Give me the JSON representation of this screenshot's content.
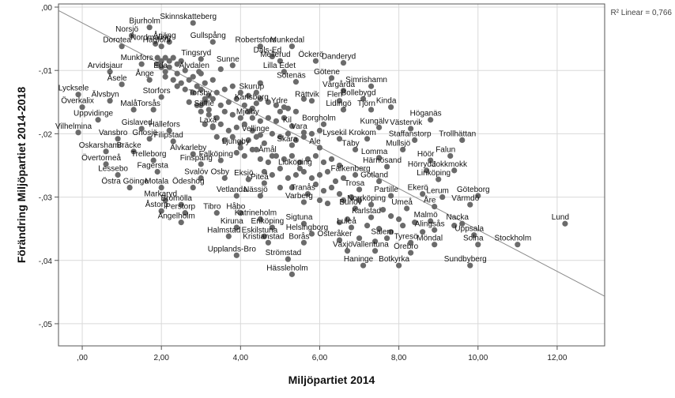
{
  "chart_data": {
    "type": "scatter",
    "title": "",
    "xlabel": "Miljöpartiet 2014",
    "ylabel": "Förändring Miljöpartiet 2014-2018",
    "xlim": [
      -0.6,
      13.2
    ],
    "ylim": [
      -0.0535,
      0.0005
    ],
    "x_ticks": [
      0,
      2,
      4,
      6,
      8,
      10,
      12
    ],
    "x_tick_labels": [
      ",00",
      "2,00",
      "4,00",
      "6,00",
      "8,00",
      "10,00",
      "12,00"
    ],
    "y_ticks": [
      0,
      -0.01,
      -0.02,
      -0.03,
      -0.04,
      -0.05
    ],
    "y_tick_labels": [
      ",00",
      "-,01",
      "-,02",
      "-,03",
      "-,04",
      "-,05"
    ],
    "grid": true,
    "fit_line": {
      "label": "R² Linear = 0,766",
      "intercept": -0.0025,
      "slope": -0.00327
    },
    "marker_color": "#6b6b6b",
    "line_color": "#8a8a8a",
    "labeled_points": [
      {
        "name": "Skinnskatteberg",
        "x": 2.8,
        "y": -0.0025
      },
      {
        "name": "Bjurholm",
        "x": 1.7,
        "y": -0.0032
      },
      {
        "name": "Årjäng",
        "x": 2.2,
        "y": -0.0055
      },
      {
        "name": "Gullspång",
        "x": 3.3,
        "y": -0.0055
      },
      {
        "name": "Norsjö",
        "x": 1.25,
        "y": -0.0045
      },
      {
        "name": "Nordmaling",
        "x": 1.85,
        "y": -0.0058
      },
      {
        "name": "Robertsfors",
        "x": 4.5,
        "y": -0.0062
      },
      {
        "name": "Munkedal",
        "x": 5.3,
        "y": -0.0062
      },
      {
        "name": "Dorotea",
        "x": 1.0,
        "y": -0.0062
      },
      {
        "name": "Hagfors",
        "x": 2.0,
        "y": -0.0062
      },
      {
        "name": "Dals-Ed",
        "x": 4.8,
        "y": -0.0078
      },
      {
        "name": "Tingsryd",
        "x": 3.0,
        "y": -0.0082
      },
      {
        "name": "Mellerud",
        "x": 5.0,
        "y": -0.0085
      },
      {
        "name": "Öckerö",
        "x": 5.9,
        "y": -0.0085
      },
      {
        "name": "Danderyd",
        "x": 6.6,
        "y": -0.0088
      },
      {
        "name": "Munkfors",
        "x": 1.5,
        "y": -0.009
      },
      {
        "name": "Sunne",
        "x": 3.8,
        "y": -0.0092
      },
      {
        "name": "Arvidsjaur",
        "x": 0.7,
        "y": -0.0102
      },
      {
        "name": "Eda",
        "x": 2.1,
        "y": -0.0102
      },
      {
        "name": "Älvdalen",
        "x": 2.95,
        "y": -0.0102
      },
      {
        "name": "Lilla Edet",
        "x": 5.1,
        "y": -0.0102
      },
      {
        "name": "Götene",
        "x": 6.3,
        "y": -0.0112
      },
      {
        "name": "Ånge",
        "x": 1.7,
        "y": -0.0115
      },
      {
        "name": "Sotenäs",
        "x": 5.4,
        "y": -0.0118
      },
      {
        "name": "Åsele",
        "x": 1.0,
        "y": -0.0122
      },
      {
        "name": "Simrishamn",
        "x": 7.3,
        "y": -0.0125
      },
      {
        "name": "Vårgårda",
        "x": 6.6,
        "y": -0.0132
      },
      {
        "name": "Skurup",
        "x": 4.4,
        "y": -0.0135
      },
      {
        "name": "Lycksele",
        "x": -0.1,
        "y": -0.0138
      },
      {
        "name": "Storfors",
        "x": 2.0,
        "y": -0.0142
      },
      {
        "name": "Torsby",
        "x": 3.1,
        "y": -0.0145
      },
      {
        "name": "Bollebygd",
        "x": 7.1,
        "y": -0.0145
      },
      {
        "name": "Älvsbyn",
        "x": 0.7,
        "y": -0.0148
      },
      {
        "name": "Karlsborg",
        "x": 4.4,
        "y": -0.0152
      },
      {
        "name": "Rättvik",
        "x": 5.8,
        "y": -0.0148
      },
      {
        "name": "Flen",
        "x": 6.5,
        "y": -0.0148
      },
      {
        "name": "Överkalix",
        "x": 0.0,
        "y": -0.0158
      },
      {
        "name": "Malå",
        "x": 1.3,
        "y": -0.0162
      },
      {
        "name": "Torsås",
        "x": 1.8,
        "y": -0.0162
      },
      {
        "name": "Säffle",
        "x": 3.2,
        "y": -0.0162
      },
      {
        "name": "Ydre",
        "x": 5.1,
        "y": -0.0158
      },
      {
        "name": "Lidingö",
        "x": 6.6,
        "y": -0.0162
      },
      {
        "name": "Tjörn",
        "x": 7.3,
        "y": -0.0162
      },
      {
        "name": "Kinda",
        "x": 7.8,
        "y": -0.0158
      },
      {
        "name": "Mjölby",
        "x": 4.3,
        "y": -0.0175
      },
      {
        "name": "Uppvidinge",
        "x": 0.4,
        "y": -0.0178
      },
      {
        "name": "Höganäs",
        "x": 8.8,
        "y": -0.0178
      },
      {
        "name": "Laxå",
        "x": 3.3,
        "y": -0.0188
      },
      {
        "name": "Kil",
        "x": 5.3,
        "y": -0.0188
      },
      {
        "name": "Borgholm",
        "x": 6.1,
        "y": -0.0185
      },
      {
        "name": "Kungälv",
        "x": 7.5,
        "y": -0.019
      },
      {
        "name": "Västervik",
        "x": 8.3,
        "y": -0.0192
      },
      {
        "name": "Hällefors",
        "x": 2.2,
        "y": -0.0195
      },
      {
        "name": "Vilhelmina",
        "x": -0.1,
        "y": -0.0198
      },
      {
        "name": "Gislaved",
        "x": 1.5,
        "y": -0.0192
      },
      {
        "name": "Vara",
        "x": 5.6,
        "y": -0.0198
      },
      {
        "name": "Vellinge",
        "x": 4.5,
        "y": -0.0202
      },
      {
        "name": "Vansbro",
        "x": 0.9,
        "y": -0.0208
      },
      {
        "name": "Gnosjö",
        "x": 1.7,
        "y": -0.0208
      },
      {
        "name": "Filipstad",
        "x": 2.3,
        "y": -0.0212
      },
      {
        "name": "Lysekil",
        "x": 6.5,
        "y": -0.0208
      },
      {
        "name": "Krokom",
        "x": 7.2,
        "y": -0.0208
      },
      {
        "name": "Staffanstorp",
        "x": 8.4,
        "y": -0.021
      },
      {
        "name": "Trollhättan",
        "x": 9.6,
        "y": -0.021
      },
      {
        "name": "Skara",
        "x": 5.3,
        "y": -0.0218
      },
      {
        "name": "Ljungby",
        "x": 4.0,
        "y": -0.0222
      },
      {
        "name": "Ale",
        "x": 6.0,
        "y": -0.0222
      },
      {
        "name": "Täby",
        "x": 6.9,
        "y": -0.0225
      },
      {
        "name": "Mullsjö",
        "x": 8.1,
        "y": -0.0225
      },
      {
        "name": "Oskarshamn",
        "x": 0.6,
        "y": -0.0228
      },
      {
        "name": "Bräcke",
        "x": 1.3,
        "y": -0.0228
      },
      {
        "name": "Älvkarleby",
        "x": 2.8,
        "y": -0.0232
      },
      {
        "name": "Åmål",
        "x": 4.8,
        "y": -0.0235
      },
      {
        "name": "Lomma",
        "x": 7.5,
        "y": -0.0238
      },
      {
        "name": "Falun",
        "x": 9.3,
        "y": -0.0235
      },
      {
        "name": "Trelleborg",
        "x": 1.8,
        "y": -0.0242
      },
      {
        "name": "Falköping",
        "x": 3.5,
        "y": -0.0242
      },
      {
        "name": "Höör",
        "x": 8.8,
        "y": -0.0242
      },
      {
        "name": "Övertorneå",
        "x": 0.6,
        "y": -0.0248
      },
      {
        "name": "Finspång",
        "x": 3.0,
        "y": -0.0248
      },
      {
        "name": "Härnösand",
        "x": 7.7,
        "y": -0.0252
      },
      {
        "name": "Lidköping",
        "x": 5.5,
        "y": -0.0255
      },
      {
        "name": "Hörryda",
        "x": 8.7,
        "y": -0.0258
      },
      {
        "name": "Jokkmokk",
        "x": 9.4,
        "y": -0.0258
      },
      {
        "name": "Fagersta",
        "x": 1.9,
        "y": -0.026
      },
      {
        "name": "Lessebo",
        "x": 0.9,
        "y": -0.0265
      },
      {
        "name": "Falkenberg",
        "x": 6.9,
        "y": -0.0265
      },
      {
        "name": "Eksjö",
        "x": 4.2,
        "y": -0.0272
      },
      {
        "name": "Svalöv",
        "x": 3.0,
        "y": -0.027
      },
      {
        "name": "Osby",
        "x": 3.6,
        "y": -0.027
      },
      {
        "name": "Gotland",
        "x": 7.5,
        "y": -0.0275
      },
      {
        "name": "Linköping",
        "x": 9.0,
        "y": -0.0272
      },
      {
        "name": "Piteå",
        "x": 4.6,
        "y": -0.0278
      },
      {
        "name": "Östra Göinge",
        "x": 1.2,
        "y": -0.0285
      },
      {
        "name": "Motala",
        "x": 2.0,
        "y": -0.0285
      },
      {
        "name": "Ödeshög",
        "x": 2.8,
        "y": -0.0285
      },
      {
        "name": "Trosa",
        "x": 7.0,
        "y": -0.0288
      },
      {
        "name": "Tranås",
        "x": 5.7,
        "y": -0.0295
      },
      {
        "name": "Vetlanda",
        "x": 3.9,
        "y": -0.0298
      },
      {
        "name": "Nässjö",
        "x": 4.5,
        "y": -0.0298
      },
      {
        "name": "Partille",
        "x": 7.8,
        "y": -0.0298
      },
      {
        "name": "Ekerö",
        "x": 8.6,
        "y": -0.0295
      },
      {
        "name": "Lerum",
        "x": 9.1,
        "y": -0.03
      },
      {
        "name": "Göteborg",
        "x": 10.0,
        "y": -0.0298
      },
      {
        "name": "Markaryd",
        "x": 2.1,
        "y": -0.0305
      },
      {
        "name": "Bromölla",
        "x": 2.5,
        "y": -0.0312
      },
      {
        "name": "Varberg",
        "x": 5.6,
        "y": -0.0308
      },
      {
        "name": "Norrköping",
        "x": 7.3,
        "y": -0.0312
      },
      {
        "name": "Värmdö",
        "x": 9.8,
        "y": -0.0312
      },
      {
        "name": "Burlöv",
        "x": 6.9,
        "y": -0.0318
      },
      {
        "name": "Umeå",
        "x": 8.2,
        "y": -0.0318
      },
      {
        "name": "Åre",
        "x": 8.9,
        "y": -0.0315
      },
      {
        "name": "Åstorp",
        "x": 2.0,
        "y": -0.0322
      },
      {
        "name": "Perstorp",
        "x": 2.6,
        "y": -0.0325
      },
      {
        "name": "Tibro",
        "x": 3.4,
        "y": -0.0325
      },
      {
        "name": "Håbo",
        "x": 4.0,
        "y": -0.0325
      },
      {
        "name": "Katrineholm",
        "x": 4.5,
        "y": -0.0335
      },
      {
        "name": "Karlstad",
        "x": 7.3,
        "y": -0.0332
      },
      {
        "name": "Malmö",
        "x": 8.8,
        "y": -0.0338
      },
      {
        "name": "Ängelholm",
        "x": 2.5,
        "y": -0.034
      },
      {
        "name": "Sigtuna",
        "x": 5.6,
        "y": -0.0342
      },
      {
        "name": "Nacka",
        "x": 9.6,
        "y": -0.0342
      },
      {
        "name": "Lund",
        "x": 12.2,
        "y": -0.0342
      },
      {
        "name": "Kiruna",
        "x": 3.9,
        "y": -0.0348
      },
      {
        "name": "Enköping",
        "x": 4.8,
        "y": -0.0348
      },
      {
        "name": "Luleå",
        "x": 6.8,
        "y": -0.0348
      },
      {
        "name": "Alingsås",
        "x": 8.9,
        "y": -0.0352
      },
      {
        "name": "Helsingborg",
        "x": 5.8,
        "y": -0.0358
      },
      {
        "name": "Halmstad",
        "x": 3.7,
        "y": -0.0362
      },
      {
        "name": "Eskilstuna",
        "x": 4.6,
        "y": -0.0362
      },
      {
        "name": "Uppsala",
        "x": 9.9,
        "y": -0.036
      },
      {
        "name": "Salem",
        "x": 7.7,
        "y": -0.0365
      },
      {
        "name": "Österåker",
        "x": 6.5,
        "y": -0.0368
      },
      {
        "name": "Kristianstad",
        "x": 4.7,
        "y": -0.0372
      },
      {
        "name": "Borås",
        "x": 5.6,
        "y": -0.0372
      },
      {
        "name": "Tyresö",
        "x": 8.3,
        "y": -0.0372
      },
      {
        "name": "Möndal",
        "x": 8.9,
        "y": -0.0375
      },
      {
        "name": "Solna",
        "x": 10.0,
        "y": -0.0375
      },
      {
        "name": "Stockholm",
        "x": 11.0,
        "y": -0.0375
      },
      {
        "name": "Växjö",
        "x": 6.7,
        "y": -0.0385
      },
      {
        "name": "Vallentuna",
        "x": 7.4,
        "y": -0.0385
      },
      {
        "name": "Örebro",
        "x": 8.3,
        "y": -0.0388
      },
      {
        "name": "Upplands-Bro",
        "x": 3.9,
        "y": -0.0392
      },
      {
        "name": "Strömstad",
        "x": 5.2,
        "y": -0.0398
      },
      {
        "name": "Haninge",
        "x": 7.1,
        "y": -0.0408
      },
      {
        "name": "Botkyrka",
        "x": 8.0,
        "y": -0.0408
      },
      {
        "name": "Sundbyberg",
        "x": 9.8,
        "y": -0.0408
      },
      {
        "name": "Hässleholm",
        "x": 5.3,
        "y": -0.0422
      }
    ],
    "extra_points": [
      [
        1.9,
        -0.008
      ],
      [
        2.0,
        -0.0085
      ],
      [
        2.1,
        -0.008
      ],
      [
        2.2,
        -0.0085
      ],
      [
        2.3,
        -0.008
      ],
      [
        2.4,
        -0.009
      ],
      [
        2.5,
        -0.0085
      ],
      [
        1.9,
        -0.009
      ],
      [
        2.0,
        -0.0095
      ],
      [
        2.2,
        -0.0095
      ],
      [
        2.4,
        -0.0105
      ],
      [
        2.6,
        -0.01
      ],
      [
        2.8,
        -0.011
      ],
      [
        3.0,
        -0.0105
      ],
      [
        2.1,
        -0.011
      ],
      [
        2.3,
        -0.0115
      ],
      [
        2.5,
        -0.012
      ],
      [
        2.7,
        -0.0115
      ],
      [
        2.9,
        -0.0125
      ],
      [
        3.1,
        -0.012
      ],
      [
        3.3,
        -0.0115
      ],
      [
        2.6,
        -0.013
      ],
      [
        2.8,
        -0.0135
      ],
      [
        3.0,
        -0.013
      ],
      [
        3.2,
        -0.014
      ],
      [
        3.4,
        -0.0135
      ],
      [
        3.6,
        -0.013
      ],
      [
        3.8,
        -0.0125
      ],
      [
        2.7,
        -0.015
      ],
      [
        2.9,
        -0.0155
      ],
      [
        3.1,
        -0.015
      ],
      [
        3.3,
        -0.0145
      ],
      [
        3.5,
        -0.0155
      ],
      [
        3.7,
        -0.015
      ],
      [
        3.9,
        -0.0145
      ],
      [
        4.0,
        -0.0135
      ],
      [
        4.2,
        -0.014
      ],
      [
        4.1,
        -0.0155
      ],
      [
        4.3,
        -0.016
      ],
      [
        4.5,
        -0.0145
      ],
      [
        4.7,
        -0.015
      ],
      [
        4.9,
        -0.0155
      ],
      [
        3.0,
        -0.0165
      ],
      [
        3.2,
        -0.017
      ],
      [
        3.4,
        -0.0175
      ],
      [
        3.6,
        -0.0165
      ],
      [
        3.8,
        -0.017
      ],
      [
        4.0,
        -0.0175
      ],
      [
        4.2,
        -0.0165
      ],
      [
        3.1,
        -0.0185
      ],
      [
        3.3,
        -0.019
      ],
      [
        3.5,
        -0.0185
      ],
      [
        3.7,
        -0.0195
      ],
      [
        3.9,
        -0.019
      ],
      [
        4.1,
        -0.0185
      ],
      [
        4.3,
        -0.0195
      ],
      [
        4.5,
        -0.018
      ],
      [
        4.7,
        -0.0175
      ],
      [
        4.9,
        -0.018
      ],
      [
        5.1,
        -0.0175
      ],
      [
        5.0,
        -0.0165
      ],
      [
        5.2,
        -0.016
      ],
      [
        5.4,
        -0.0165
      ],
      [
        3.4,
        -0.0205
      ],
      [
        3.6,
        -0.021
      ],
      [
        3.8,
        -0.0205
      ],
      [
        4.0,
        -0.0215
      ],
      [
        4.2,
        -0.021
      ],
      [
        4.4,
        -0.0205
      ],
      [
        4.6,
        -0.0215
      ],
      [
        4.8,
        -0.02
      ],
      [
        5.0,
        -0.0205
      ],
      [
        5.2,
        -0.02
      ],
      [
        5.4,
        -0.021
      ],
      [
        5.6,
        -0.0205
      ],
      [
        5.8,
        -0.02
      ],
      [
        6.0,
        -0.0195
      ],
      [
        3.9,
        -0.023
      ],
      [
        4.1,
        -0.0235
      ],
      [
        4.3,
        -0.0225
      ],
      [
        4.5,
        -0.024
      ],
      [
        4.7,
        -0.0245
      ],
      [
        4.9,
        -0.0235
      ],
      [
        5.1,
        -0.024
      ],
      [
        5.3,
        -0.0235
      ],
      [
        5.5,
        -0.0245
      ],
      [
        5.7,
        -0.024
      ],
      [
        5.9,
        -0.0235
      ],
      [
        6.1,
        -0.0245
      ],
      [
        6.3,
        -0.024
      ],
      [
        6.5,
        -0.025
      ],
      [
        4.6,
        -0.026
      ],
      [
        4.8,
        -0.0265
      ],
      [
        5.0,
        -0.0255
      ],
      [
        5.2,
        -0.027
      ],
      [
        5.4,
        -0.0265
      ],
      [
        5.6,
        -0.026
      ],
      [
        5.8,
        -0.027
      ],
      [
        6.0,
        -0.0265
      ],
      [
        6.2,
        -0.026
      ],
      [
        6.4,
        -0.0275
      ],
      [
        6.6,
        -0.027
      ],
      [
        5.0,
        -0.0285
      ],
      [
        5.3,
        -0.0285
      ],
      [
        5.9,
        -0.028
      ],
      [
        6.1,
        -0.029
      ],
      [
        6.3,
        -0.0285
      ],
      [
        6.5,
        -0.0295
      ],
      [
        6.0,
        -0.0305
      ],
      [
        6.2,
        -0.031
      ],
      [
        6.6,
        -0.0305
      ],
      [
        6.8,
        -0.03
      ],
      [
        7.0,
        -0.0305
      ],
      [
        7.6,
        -0.032
      ],
      [
        7.8,
        -0.033
      ],
      [
        8.0,
        -0.0335
      ],
      [
        8.4,
        -0.034
      ],
      [
        6.5,
        -0.034
      ],
      [
        6.7,
        -0.0335
      ],
      [
        7.2,
        -0.0345
      ],
      [
        7.5,
        -0.035
      ],
      [
        7.8,
        -0.0355
      ],
      [
        8.1,
        -0.0345
      ],
      [
        8.6,
        -0.0355
      ],
      [
        7.0,
        -0.0365
      ],
      [
        7.4,
        -0.037
      ],
      [
        9.4,
        -0.0345
      ],
      [
        3.0,
        -0.0155
      ],
      [
        4.4,
        -0.0225
      ],
      [
        2.4,
        -0.0125
      ],
      [
        3.5,
        -0.0098
      ],
      [
        4.5,
        -0.012
      ],
      [
        5.6,
        -0.0145
      ]
    ]
  }
}
